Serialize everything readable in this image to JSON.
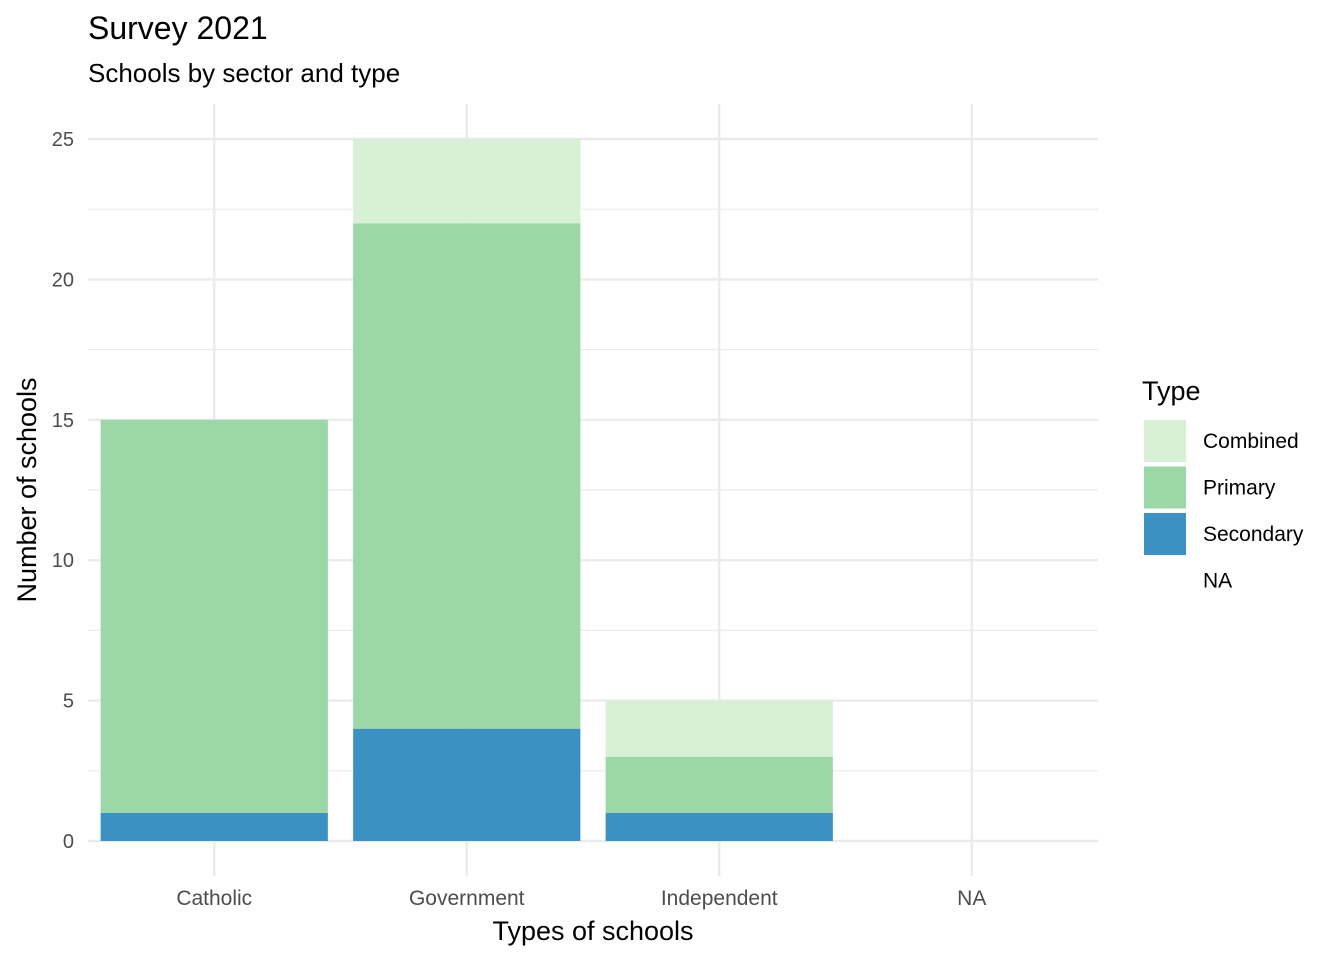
{
  "title": "Survey 2021",
  "subtitle": "Schools by sector and type",
  "chart_data": {
    "type": "bar",
    "stacked": true,
    "categories": [
      "Catholic",
      "Government",
      "Independent",
      "NA"
    ],
    "series": [
      {
        "name": "Secondary",
        "values": [
          1,
          4,
          1,
          0
        ],
        "color": "#3b92c2"
      },
      {
        "name": "Primary",
        "values": [
          14,
          18,
          2,
          0
        ],
        "color": "#9cd7a7"
      },
      {
        "name": "Combined",
        "values": [
          0,
          3,
          2,
          0
        ],
        "color": "#d8f0d5"
      },
      {
        "name": "NA",
        "values": [
          0,
          0,
          0,
          0
        ],
        "color": "#ffffff"
      }
    ],
    "stack_order_bottom_to_top": [
      "Secondary",
      "Primary",
      "Combined"
    ],
    "xlabel": "Types of schools",
    "ylabel": "Number of schools",
    "ylim": [
      0,
      26.25
    ],
    "yticks": [
      0,
      5,
      10,
      15,
      20,
      25
    ],
    "grid": true,
    "legend": {
      "title": "Type",
      "position": "right",
      "entries": [
        "Combined",
        "Primary",
        "Secondary",
        "NA"
      ]
    }
  }
}
